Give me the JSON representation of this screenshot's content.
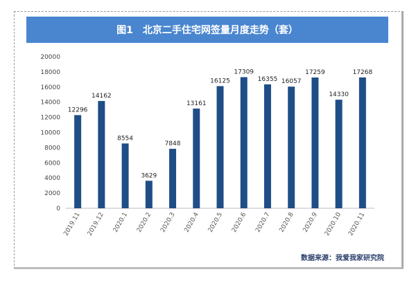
{
  "chart_data": {
    "type": "bar",
    "title": "图1　北京二手住宅网签量月度走势（套）",
    "categories": [
      "2019.11",
      "2019.12",
      "2020.1",
      "2020.2",
      "2020.3",
      "2020.4",
      "2020.5",
      "2020.6",
      "2020.7",
      "2020.8",
      "2020.9",
      "2020.10",
      "2020.11"
    ],
    "values": [
      12296,
      14162,
      8554,
      3629,
      7848,
      13161,
      16125,
      17309,
      16355,
      16057,
      17259,
      14330,
      17268
    ],
    "ylim": [
      0,
      20000
    ],
    "yticks": [
      "0",
      "2000",
      "4000",
      "6000",
      "8000",
      "10000",
      "12000",
      "14000",
      "16000",
      "18000",
      "20000"
    ],
    "grid": false,
    "bar_color": "#1f4e87",
    "xlabel": "",
    "ylabel": ""
  },
  "source": "数据来源：我爱我家研究院"
}
